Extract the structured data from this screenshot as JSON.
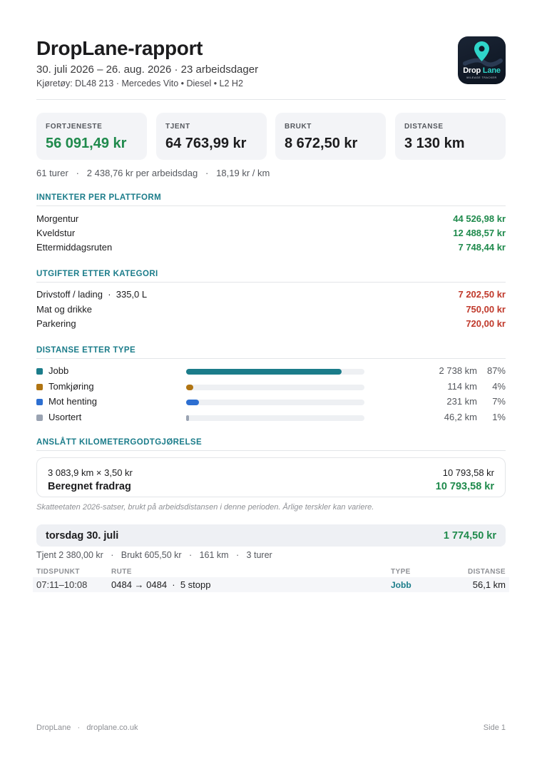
{
  "header": {
    "title": "DropLane-rapport",
    "period": "30. juli 2026 – 26. aug. 2026 · 23 arbeidsdager",
    "vehicle": "Kjøretøy: DL48 213 · Mercedes Vito • Diesel • L2 H2",
    "logo_text_a": "Drop",
    "logo_text_b": "Lane",
    "logo_sub": "MILEAGE TRACKER"
  },
  "cards": [
    {
      "label": "FORTJENESTE",
      "value": "56 091,49 kr"
    },
    {
      "label": "TJENT",
      "value": "64 763,99 kr"
    },
    {
      "label": "BRUKT",
      "value": "8 672,50 kr"
    },
    {
      "label": "DISTANSE",
      "value": "3 130 km"
    }
  ],
  "summary": "61 turer   ·   2 438,76 kr per arbeidsdag   ·   18,19 kr / km",
  "income": {
    "title": "INNTEKTER PER PLATTFORM",
    "rows": [
      {
        "label": "Morgentur",
        "value": "44 526,98 kr"
      },
      {
        "label": "Kveldstur",
        "value": "12 488,57 kr"
      },
      {
        "label": "Ettermiddagsruten",
        "value": "7 748,44 kr"
      }
    ]
  },
  "expenses": {
    "title": "UTGIFTER ETTER KATEGORI",
    "rows": [
      {
        "label": "Drivstoff / lading  ·  335,0 L",
        "value": "7 202,50 kr"
      },
      {
        "label": "Mat og drikke",
        "value": "750,00 kr"
      },
      {
        "label": "Parkering",
        "value": "720,00 kr"
      }
    ]
  },
  "distance": {
    "title": "DISTANSE ETTER TYPE",
    "rows": [
      {
        "label": "Jobb",
        "km": "2 738 km",
        "pct": "87%",
        "fraction": 0.87,
        "color": "#1b7c8a"
      },
      {
        "label": "Tomkjøring",
        "km": "114 km",
        "pct": "4%",
        "fraction": 0.04,
        "color": "#b07412"
      },
      {
        "label": "Mot henting",
        "km": "231 km",
        "pct": "7%",
        "fraction": 0.07,
        "color": "#2d6fd1"
      },
      {
        "label": "Usortert",
        "km": "46,2 km",
        "pct": "1%",
        "fraction": 0.01,
        "color": "#9aa3b2"
      }
    ]
  },
  "mileage": {
    "title": "ANSLÅTT KILOMETERGODTGJØRELSE",
    "calc": "3 083,9 km × 3,50 kr",
    "calc_value": "10 793,58 kr",
    "deduction_label": "Beregnet fradrag",
    "deduction_value": "10 793,58 kr",
    "note": "Skatteetaten 2026-satser, brukt på arbeidsdistansen i denne perioden. Årlige terskler kan variere."
  },
  "day": {
    "name": "torsdag 30. juli",
    "total": "1 774,50 kr",
    "summary": "Tjent 2 380,00 kr   ·   Brukt 605,50 kr   ·   161 km   ·   3 turer",
    "columns": {
      "time": "TIDSPUNKT",
      "route": "RUTE",
      "type": "TYPE",
      "distance": "DISTANSE"
    },
    "trips": [
      {
        "time": "07:11–10:08",
        "route": "0484 → 0484  ·  5 stopp",
        "type": "Jobb",
        "distance": "56,1 km"
      }
    ]
  },
  "footer": {
    "left": "DropLane   ·   droplane.co.uk",
    "right": "Side 1"
  },
  "colors": {
    "accent": "#1b7c8a",
    "positive": "#1f8a4c",
    "negative": "#c0392b"
  }
}
